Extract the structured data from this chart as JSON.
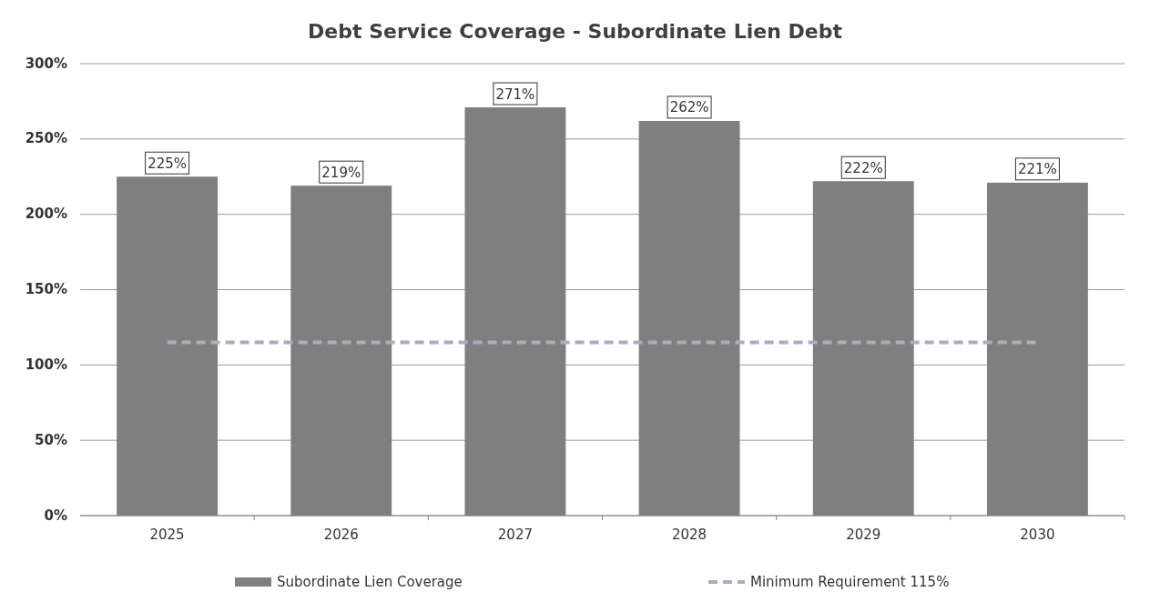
{
  "chart_data": {
    "type": "bar",
    "title": "Debt Service Coverage - Subordinate Lien Debt",
    "categories": [
      "2025",
      "2026",
      "2027",
      "2028",
      "2029",
      "2030"
    ],
    "series": [
      {
        "name": "Subordinate Lien Coverage",
        "color": "#7f7f7f",
        "values": [
          225,
          219,
          271,
          262,
          222,
          221
        ],
        "value_labels": [
          "225%",
          "219%",
          "271%",
          "262%",
          "222%",
          "221%"
        ]
      },
      {
        "name": "Minimum Requirement 115%",
        "type": "line",
        "color": "#a8adc2",
        "line_style": "dashed",
        "marker": "none",
        "values": [
          115,
          115,
          115,
          115,
          115,
          115
        ]
      }
    ],
    "ylim": [
      0,
      300
    ],
    "yticks": [
      {
        "value": 0,
        "label": "0%"
      },
      {
        "value": 50,
        "label": "50%"
      },
      {
        "value": 100,
        "label": "100%"
      },
      {
        "value": 150,
        "label": "150%"
      },
      {
        "value": 200,
        "label": "200%"
      },
      {
        "value": 250,
        "label": "250%"
      },
      {
        "value": 300,
        "label": "300%"
      }
    ],
    "grid": "y",
    "legend": "bottom"
  }
}
